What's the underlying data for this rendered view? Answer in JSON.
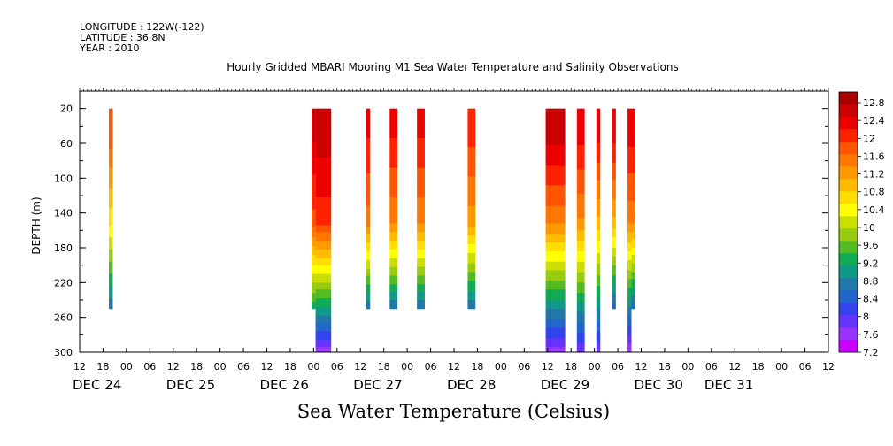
{
  "header": {
    "longitude": "LONGITUDE : 122W(-122)",
    "latitude": "LATITUDE : 36.8N",
    "year": "YEAR : 2010"
  },
  "chart_data": {
    "type": "heatmap",
    "title": "Hourly Gridded MBARI Mooring M1 Sea Water Temperature and Salinity Observations",
    "bottom_label": "Sea Water Temperature (Celsius)",
    "ylabel": "DEPTH (m)",
    "ylim": [
      300,
      0
    ],
    "y_inverted": true,
    "yticks": [
      20,
      60,
      100,
      140,
      180,
      220,
      260,
      300
    ],
    "xlim_hours_from_dec24_00": [
      -12,
      180
    ],
    "x_hour_ticks": [
      "12",
      "18",
      "00",
      "06",
      "12",
      "18",
      "00",
      "06",
      "12",
      "18",
      "00",
      "06",
      "12",
      "18",
      "00",
      "06",
      "12",
      "18",
      "00",
      "06",
      "12",
      "18",
      "00",
      "06",
      "12",
      "18",
      "00",
      "06",
      "12",
      "18",
      "00",
      "06",
      "12"
    ],
    "x_day_labels": [
      {
        "label": "DEC 24",
        "hour": -12
      },
      {
        "label": "DEC 25",
        "hour": 12
      },
      {
        "label": "DEC 26",
        "hour": 36
      },
      {
        "label": "DEC 27",
        "hour": 60
      },
      {
        "label": "DEC 28",
        "hour": 84
      },
      {
        "label": "DEC 29",
        "hour": 108
      },
      {
        "label": "DEC 30",
        "hour": 132
      },
      {
        "label": "DEC 31",
        "hour": 150
      }
    ],
    "colorbar": {
      "labels": [
        "12.8",
        "12.4",
        "12",
        "11.6",
        "11.2",
        "10.8",
        "10.4",
        "10",
        "9.6",
        "9.2",
        "8.8",
        "8.4",
        "8",
        "7.6",
        "7.2"
      ],
      "min": 7.2,
      "max": 13.0,
      "colors": [
        "#cc00ff",
        "#9933ff",
        "#6633ff",
        "#3344ee",
        "#2266cc",
        "#2277aa",
        "#119988",
        "#11aa55",
        "#55bb22",
        "#99cc11",
        "#ccdd00",
        "#ffff00",
        "#ffdd00",
        "#ffbb00",
        "#ff9900",
        "#ff7700",
        "#ff5500",
        "#ff2200",
        "#ee0000",
        "#cc0000",
        "#aa0000"
      ]
    },
    "columns": [
      {
        "x0": -4.5,
        "x1": -3.5,
        "bottom": 250,
        "surface": 11.8,
        "mid": 10.6,
        "deep": 8.6
      },
      {
        "x0": 47.5,
        "x1": 48.5,
        "bottom": 250,
        "surface": 12.5,
        "mid": 11.8,
        "deep": 9.2
      },
      {
        "x0": 48.5,
        "x1": 52.5,
        "bottom": 300,
        "surface": 12.6,
        "mid": 12.0,
        "deep": 7.6
      },
      {
        "x0": 61.5,
        "x1": 62.5,
        "bottom": 250,
        "surface": 12.2,
        "mid": 11.5,
        "deep": 8.6
      },
      {
        "x0": 67.5,
        "x1": 69.5,
        "bottom": 250,
        "surface": 12.2,
        "mid": 11.4,
        "deep": 8.6
      },
      {
        "x0": 74.5,
        "x1": 76.5,
        "bottom": 250,
        "surface": 12.2,
        "mid": 11.4,
        "deep": 8.6
      },
      {
        "x0": 87.5,
        "x1": 89.5,
        "bottom": 250,
        "surface": 12.0,
        "mid": 11.2,
        "deep": 8.6
      },
      {
        "x0": 107.5,
        "x1": 112.5,
        "bottom": 300,
        "surface": 12.6,
        "mid": 11.4,
        "deep": 7.6
      },
      {
        "x0": 115.5,
        "x1": 117.5,
        "bottom": 300,
        "surface": 12.3,
        "mid": 11.3,
        "deep": 7.8
      },
      {
        "x0": 120.5,
        "x1": 121.5,
        "bottom": 300,
        "surface": 12.3,
        "mid": 11.0,
        "deep": 7.8
      },
      {
        "x0": 124.5,
        "x1": 125.5,
        "bottom": 250,
        "surface": 12.3,
        "mid": 11.0,
        "deep": 8.4
      },
      {
        "x0": 128.5,
        "x1": 129.5,
        "bottom": 300,
        "surface": 12.3,
        "mid": 11.4,
        "deep": 7.5
      },
      {
        "x0": 129.5,
        "x1": 130.5,
        "bottom": 250,
        "surface": 12.3,
        "mid": 11.4,
        "deep": 8.4
      }
    ]
  }
}
